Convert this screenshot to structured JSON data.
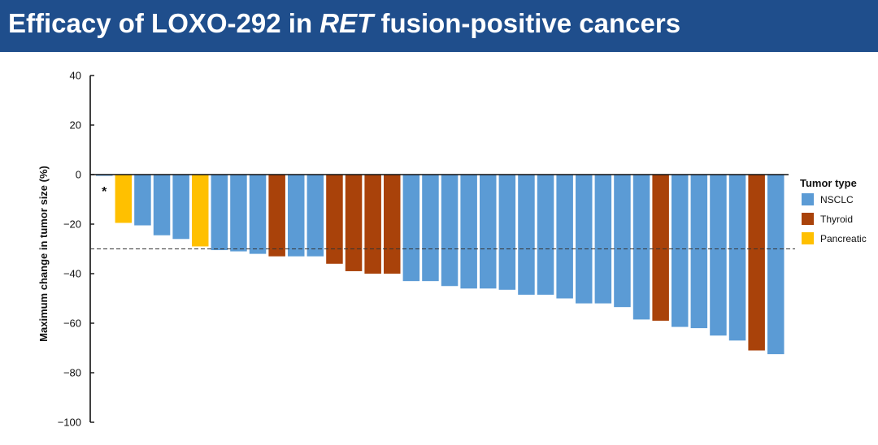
{
  "title": {
    "pre": "Efficacy of LOXO-292 in ",
    "em": "RET",
    "post": " fusion-positive cancers"
  },
  "colors": {
    "header": "#1f4e8c",
    "NSCLC": "#5b9bd5",
    "Thyroid": "#a9420a",
    "Pancreatic": "#ffc000"
  },
  "chart_data": {
    "type": "bar",
    "title": "",
    "xlabel": "",
    "ylabel": "Maximum change in tumor size (%)",
    "ylim": [
      -100,
      40
    ],
    "yticks": [
      40,
      20,
      0,
      -20,
      -40,
      -60,
      -80,
      -100
    ],
    "ytick_labels": [
      "40",
      "20",
      "0",
      "−20",
      "−40",
      "−60",
      "−80",
      "−100"
    ],
    "reference_line": -30,
    "grid": false,
    "legend_position": "right",
    "legend_title": "Tumor type",
    "legend": [
      "NSCLC",
      "Thyroid",
      "Pancreatic"
    ],
    "annotations": [
      {
        "text": "*",
        "bar_index": 0
      }
    ],
    "bars": [
      {
        "value": -0.5,
        "type": "NSCLC"
      },
      {
        "value": -19.5,
        "type": "Pancreatic"
      },
      {
        "value": -20.5,
        "type": "NSCLC"
      },
      {
        "value": -24.5,
        "type": "NSCLC"
      },
      {
        "value": -26,
        "type": "NSCLC"
      },
      {
        "value": -29,
        "type": "Pancreatic"
      },
      {
        "value": -30.5,
        "type": "NSCLC"
      },
      {
        "value": -31,
        "type": "NSCLC"
      },
      {
        "value": -32,
        "type": "NSCLC"
      },
      {
        "value": -33,
        "type": "Thyroid"
      },
      {
        "value": -33,
        "type": "NSCLC"
      },
      {
        "value": -33,
        "type": "NSCLC"
      },
      {
        "value": -36,
        "type": "Thyroid"
      },
      {
        "value": -39,
        "type": "Thyroid"
      },
      {
        "value": -40,
        "type": "Thyroid"
      },
      {
        "value": -40,
        "type": "Thyroid"
      },
      {
        "value": -43,
        "type": "NSCLC"
      },
      {
        "value": -43,
        "type": "NSCLC"
      },
      {
        "value": -45,
        "type": "NSCLC"
      },
      {
        "value": -46,
        "type": "NSCLC"
      },
      {
        "value": -46,
        "type": "NSCLC"
      },
      {
        "value": -46.5,
        "type": "NSCLC"
      },
      {
        "value": -48.5,
        "type": "NSCLC"
      },
      {
        "value": -48.5,
        "type": "NSCLC"
      },
      {
        "value": -50,
        "type": "NSCLC"
      },
      {
        "value": -52,
        "type": "NSCLC"
      },
      {
        "value": -52,
        "type": "NSCLC"
      },
      {
        "value": -53.5,
        "type": "NSCLC"
      },
      {
        "value": -58.5,
        "type": "NSCLC"
      },
      {
        "value": -59,
        "type": "Thyroid"
      },
      {
        "value": -61.5,
        "type": "NSCLC"
      },
      {
        "value": -62,
        "type": "NSCLC"
      },
      {
        "value": -65,
        "type": "NSCLC"
      },
      {
        "value": -67,
        "type": "NSCLC"
      },
      {
        "value": -71,
        "type": "Thyroid"
      },
      {
        "value": -72.5,
        "type": "NSCLC"
      }
    ]
  }
}
